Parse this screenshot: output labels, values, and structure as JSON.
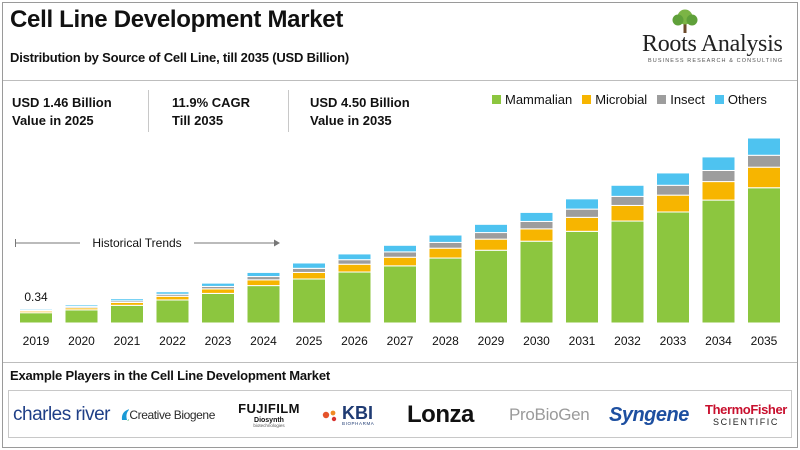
{
  "header": {
    "title": "Cell Line Development Market",
    "subtitle": "Distribution by Source of Cell Line, till 2035 (USD Billion)"
  },
  "brand": {
    "name": "Roots Analysis",
    "tagline": "BUSINESS RESEARCH & CONSULTING"
  },
  "stats": [
    {
      "line1": "USD 1.46 Billion",
      "line2": "Value in 2025"
    },
    {
      "line1": "11.9% CAGR",
      "line2": "Till 2035"
    },
    {
      "line1": "USD 4.50 Billion",
      "line2": "Value in 2035"
    }
  ],
  "chart_data": {
    "type": "bar",
    "stacked": true,
    "categories": [
      "2019",
      "2020",
      "2021",
      "2022",
      "2023",
      "2024",
      "2025",
      "2026",
      "2027",
      "2028",
      "2029",
      "2030",
      "2031",
      "2032",
      "2033",
      "2034",
      "2035"
    ],
    "series": [
      {
        "name": "Mammalian",
        "color": "#8cc63f",
        "values": [
          0.25,
          0.32,
          0.43,
          0.56,
          0.72,
          0.91,
          1.07,
          1.24,
          1.39,
          1.58,
          1.77,
          1.99,
          2.23,
          2.48,
          2.7,
          2.99,
          3.29
        ]
      },
      {
        "name": "Microbial",
        "color": "#f7b500",
        "values": [
          0.04,
          0.05,
          0.07,
          0.09,
          0.11,
          0.14,
          0.16,
          0.19,
          0.21,
          0.24,
          0.27,
          0.3,
          0.34,
          0.38,
          0.41,
          0.45,
          0.5
        ]
      },
      {
        "name": "Insect",
        "color": "#9d9d9d",
        "values": [
          0.02,
          0.03,
          0.04,
          0.05,
          0.06,
          0.08,
          0.1,
          0.11,
          0.13,
          0.14,
          0.16,
          0.18,
          0.2,
          0.22,
          0.24,
          0.27,
          0.29
        ]
      },
      {
        "name": "Others",
        "color": "#4ec3f0",
        "values": [
          0.03,
          0.04,
          0.05,
          0.06,
          0.08,
          0.1,
          0.13,
          0.14,
          0.16,
          0.18,
          0.2,
          0.22,
          0.25,
          0.27,
          0.3,
          0.33,
          0.42
        ]
      }
    ],
    "data_labels": [
      {
        "category": "2019",
        "text": "0.34"
      }
    ],
    "annotation": {
      "text": "Historical Trends",
      "from": "2019",
      "to": "2024"
    },
    "ylim": [
      0,
      4.5
    ],
    "grid": false,
    "legend_position": "top-right"
  },
  "players": {
    "title": "Example Players in the Cell Line Development Market",
    "logos": [
      {
        "name": "charles river",
        "color": "#1f3f87"
      },
      {
        "name": "Creative Biogene",
        "color": "#2a2a2a"
      },
      {
        "name": "FUJIFILM",
        "sub": "Diosynth",
        "sub2": "biotechnologies",
        "color": "#111111"
      },
      {
        "name": "KBI",
        "sub": "BIOPHARMA",
        "color": "#1f3b73"
      },
      {
        "name": "Lonza",
        "color": "#111111"
      },
      {
        "name": "ProBioGen",
        "color": "#9a9a9a"
      },
      {
        "name": "Syngene",
        "color": "#1d4fa0"
      },
      {
        "name": "ThermoFisher",
        "sub": "SCIENTIFIC",
        "color": "#c8102e"
      }
    ]
  }
}
